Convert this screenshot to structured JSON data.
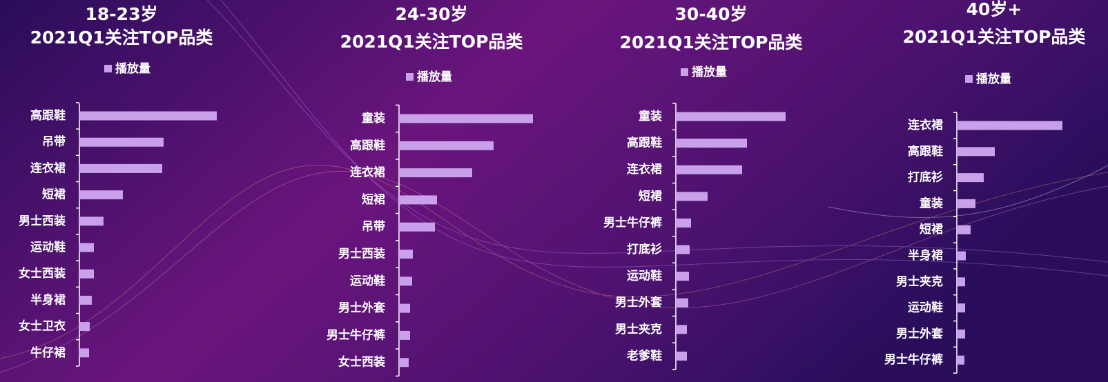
{
  "chart_data": [
    {
      "type": "bar",
      "orientation": "horizontal",
      "title": "18-23岁",
      "subtitle": "2021Q1关注TOP品类",
      "categories": [
        "高跟鞋",
        "吊带",
        "连衣裙",
        "短裙",
        "男士西装",
        "运动鞋",
        "女士西装",
        "半身裙",
        "女士卫衣",
        "牛仔裙"
      ],
      "series": [
        {
          "name": "播放量",
          "color": "#c9a1ea",
          "values": [
            199,
            122,
            120,
            63,
            35,
            21,
            21,
            18,
            15,
            14
          ]
        }
      ],
      "xlim": [
        0,
        200
      ]
    },
    {
      "type": "bar",
      "orientation": "horizontal",
      "title": "24-30岁",
      "subtitle": "2021Q1关注TOP品类",
      "categories": [
        "童装",
        "高跟鞋",
        "连衣裙",
        "短裙",
        "吊带",
        "男士西装",
        "运动鞋",
        "男士外套",
        "男士牛仔裤",
        "女士西装"
      ],
      "series": [
        {
          "name": "播放量",
          "color": "#c9a1ea",
          "values": [
            194,
            137,
            106,
            55,
            52,
            20,
            19,
            16,
            16,
            14
          ]
        }
      ],
      "xlim": [
        0,
        200
      ]
    },
    {
      "type": "bar",
      "orientation": "horizontal",
      "title": "30-40岁",
      "subtitle": "2021Q1关注TOP品类",
      "categories": [
        "童装",
        "高跟鞋",
        "连衣裙",
        "短裙",
        "男士牛仔裤",
        "打底衫",
        "运动鞋",
        "男士外套",
        "男士夹克",
        "老爹鞋"
      ],
      "series": [
        {
          "name": "播放量",
          "color": "#c9a1ea",
          "values": [
            159,
            103,
            96,
            46,
            22,
            20,
            19,
            18,
            16,
            16
          ]
        }
      ],
      "xlim": [
        0,
        200
      ]
    },
    {
      "type": "bar",
      "orientation": "horizontal",
      "title": "40岁+",
      "subtitle": "2021Q1关注TOP品类",
      "categories": [
        "连衣裙",
        "高跟鞋",
        "打底衫",
        "童装",
        "短裙",
        "半身裙",
        "男士夹克",
        "运动鞋",
        "男士外套",
        "男士牛仔裤"
      ],
      "series": [
        {
          "name": "播放量",
          "color": "#c9a1ea",
          "values": [
            153,
            55,
            39,
            27,
            20,
            13,
            12,
            12,
            12,
            11
          ]
        }
      ],
      "xlim": [
        0,
        200
      ]
    }
  ]
}
